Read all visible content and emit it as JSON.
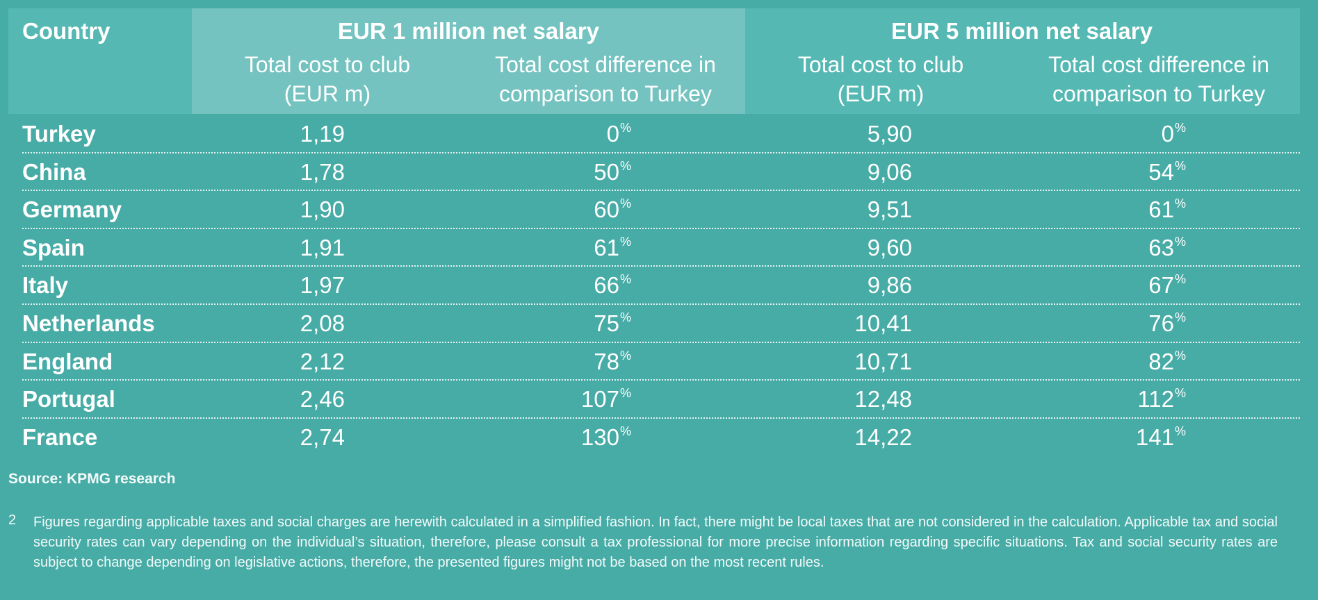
{
  "header": {
    "country": "Country",
    "group1": {
      "title": "EUR 1 million net salary",
      "sub1": "Total cost to club\n(EUR m)",
      "sub2": "Total cost difference in\ncomparison to Turkey"
    },
    "group2": {
      "title": "EUR 5 million net salary",
      "sub1": "Total cost to club\n(EUR m)",
      "sub2": "Total cost difference in\ncomparison to Turkey"
    }
  },
  "chart_data": {
    "type": "table",
    "columns": [
      "Country",
      "EUR 1 million net salary — Total cost to club (EUR m)",
      "EUR 1 million net salary — Total cost difference in comparison to Turkey",
      "EUR 5 million net salary — Total cost to club (EUR m)",
      "EUR 5 million net salary — Total cost difference in comparison to Turkey"
    ],
    "rows": [
      {
        "country": "Turkey",
        "v1": "1,19",
        "p1": "0",
        "v2": "5,90",
        "p2": "0"
      },
      {
        "country": "China",
        "v1": "1,78",
        "p1": "50",
        "v2": "9,06",
        "p2": "54"
      },
      {
        "country": "Germany",
        "v1": "1,90",
        "p1": "60",
        "v2": "9,51",
        "p2": "61"
      },
      {
        "country": "Spain",
        "v1": "1,91",
        "p1": "61",
        "v2": "9,60",
        "p2": "63"
      },
      {
        "country": "Italy",
        "v1": "1,97",
        "p1": "66",
        "v2": "9,86",
        "p2": "67"
      },
      {
        "country": "Netherlands",
        "v1": "2,08",
        "p1": "75",
        "v2": "10,41",
        "p2": "76"
      },
      {
        "country": "England",
        "v1": "2,12",
        "p1": "78",
        "v2": "10,71",
        "p2": "82"
      },
      {
        "country": "Portugal",
        "v1": "2,46",
        "p1": "107",
        "v2": "12,48",
        "p2": "112"
      },
      {
        "country": "France",
        "v1": "2,74",
        "p1": "130",
        "v2": "14,22",
        "p2": "141"
      }
    ],
    "percent_sign": "%"
  },
  "source": "Source: KPMG research",
  "footnote": {
    "number": "2",
    "text": "Figures regarding applicable taxes and social charges are herewith calculated in a simplified fashion. In fact, there might be local taxes that are not considered in the calculation. Applicable tax and social security rates can vary depending on the individual’s situation, therefore, please consult a tax professional for more precise information regarding specific situations. Tax and social security rates are subject to change depending on legislative actions, therefore, the presented figures might not be based on the most recent rules."
  },
  "colors": {
    "background": "#47aba6",
    "header_band": "#55b8b3",
    "header_band_highlight": "#74c3c0",
    "text": "#ffffff"
  }
}
